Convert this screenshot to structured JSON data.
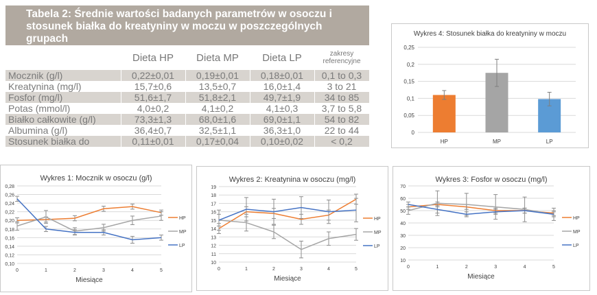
{
  "table": {
    "title": "Tabela 2: Średnie wartości badanych parametrów w osoczu i stosunek białka do kreatyniny w moczu w poszczególnych grupach",
    "headers": [
      "",
      "Dieta HP",
      "Dieta MP",
      "Dieta LP",
      "zakresy referencyjne"
    ],
    "rows": [
      [
        "Mocznik (g/l)",
        "0,22±0,01",
        "0,19±0,01",
        "0,18±0,01",
        "0,1 to 0,3"
      ],
      [
        "Kreatynina (mg/l)",
        "15,7±0,6",
        "13,5±0,7",
        "16,0±1,4",
        "3 to 21"
      ],
      [
        "Fosfor (mg/l)",
        "51,6±1,7",
        "51,8±2,1",
        "49,7±1,9",
        "34 to 85"
      ],
      [
        "Potas (mmol/l)",
        "4,0±0,2",
        "4,1±0,2",
        "4,1±0,3",
        "3,7 to 5,8"
      ],
      [
        "Białko całkowite (g/l)",
        "73,3±1,3",
        "68,0±1,6",
        "69,0±1,1",
        "54 to 82"
      ],
      [
        "Albumina (g/l)",
        "36,4±0,7",
        "32,5±1,1",
        "36,3±1,0",
        "22 to 44"
      ],
      [
        "Stosunek białka do",
        "0,11±0,01",
        "0,17±0,04",
        "0,10±0,02",
        "< 0,2"
      ]
    ]
  },
  "chart_data": [
    {
      "id": "wykres4",
      "type": "bar",
      "title": "Wykres 4: Stosunek białka do kreatyniny w moczu",
      "categories": [
        "HP",
        "MP",
        "LP"
      ],
      "values": [
        0.11,
        0.175,
        0.098
      ],
      "errors": [
        0.013,
        0.04,
        0.02
      ],
      "colors": [
        "#ed7d31",
        "#a5a5a5",
        "#5b9bd5"
      ],
      "ylim": [
        0,
        0.25
      ],
      "yticks": [
        0,
        0.05,
        0.1,
        0.15,
        0.2,
        0.25
      ],
      "ytick_labels": [
        "0",
        "0,05",
        "0,1",
        "0,15",
        "0,2",
        "0,25"
      ],
      "xlabel": "",
      "ylabel": ""
    },
    {
      "id": "wykres1",
      "type": "line",
      "title": "Wykres 1: Mocznik w osoczu (g/l)",
      "x": [
        0,
        1,
        2,
        3,
        4,
        5
      ],
      "xlabel": "Miesiące",
      "ylim": [
        0.1,
        0.28
      ],
      "yticks": [
        0.1,
        0.12,
        0.14,
        0.16,
        0.18,
        0.2,
        0.22,
        0.24,
        0.26,
        0.28
      ],
      "ytick_labels": [
        "0,10",
        "0,12",
        "0,14",
        "0,16",
        "0,18",
        "0,20",
        "0,22",
        "0,24",
        "0,26",
        "0,28"
      ],
      "series": [
        {
          "name": "HP",
          "color": "#ed7d31",
          "values": [
            0.2,
            0.202,
            0.205,
            0.227,
            0.232,
            0.218
          ],
          "errors": [
            0.006,
            0.006,
            0.006,
            0.006,
            0.006,
            0.006
          ]
        },
        {
          "name": "MP",
          "color": "#a5a5a5",
          "values": [
            0.187,
            0.208,
            0.175,
            0.183,
            0.2,
            0.21
          ],
          "errors": [
            0.01,
            0.015,
            0.008,
            0.008,
            0.01,
            0.01
          ]
        },
        {
          "name": "LP",
          "color": "#4472c4",
          "values": [
            0.25,
            0.18,
            0.172,
            0.172,
            0.155,
            0.16
          ],
          "errors": [
            0.006,
            0.006,
            0.006,
            0.006,
            0.008,
            0.006
          ]
        }
      ]
    },
    {
      "id": "wykres2",
      "type": "line",
      "title": "Wykres 2: Kreatynina w osoczu (mg/l)",
      "x": [
        0,
        1,
        2,
        3,
        4,
        5
      ],
      "xlabel": "Miesiące",
      "ylim": [
        10,
        19
      ],
      "yticks": [
        10,
        11,
        12,
        13,
        14,
        15,
        16,
        17,
        18,
        19
      ],
      "ytick_labels": [
        "10",
        "11",
        "12",
        "13",
        "14",
        "15",
        "16",
        "17",
        "18",
        "19"
      ],
      "series": [
        {
          "name": "HP",
          "color": "#ed7d31",
          "values": [
            14.0,
            16.0,
            15.8,
            15.1,
            15.6,
            17.5
          ],
          "errors": [
            0.6,
            0.6,
            0.6,
            0.6,
            0.6,
            0.6
          ]
        },
        {
          "name": "MP",
          "color": "#a5a5a5",
          "values": [
            15.0,
            14.7,
            13.6,
            11.5,
            12.8,
            13.3
          ],
          "errors": [
            0.7,
            1.0,
            0.8,
            1.0,
            0.8,
            0.7
          ]
        },
        {
          "name": "LP",
          "color": "#4472c4",
          "values": [
            15.0,
            16.3,
            16.0,
            16.5,
            16.0,
            16.2
          ],
          "errors": [
            1.2,
            1.4,
            1.5,
            1.3,
            1.4,
            1.4
          ]
        }
      ]
    },
    {
      "id": "wykres3",
      "type": "line",
      "title": "Wykres 3: Fosfor w osoczu (mg/l)",
      "x": [
        0,
        1,
        2,
        3,
        4,
        5
      ],
      "xlabel": "Miesiące",
      "ylim": [
        10,
        70
      ],
      "yticks": [
        10,
        20,
        30,
        40,
        50,
        60,
        70
      ],
      "ytick_labels": [
        "10",
        "20",
        "30",
        "40",
        "50",
        "60",
        "70"
      ],
      "series": [
        {
          "name": "HP",
          "color": "#ed7d31",
          "values": [
            53,
            55,
            53,
            50,
            50,
            48
          ],
          "errors": [
            2,
            2,
            2,
            2,
            2,
            2
          ]
        },
        {
          "name": "MP",
          "color": "#a5a5a5",
          "values": [
            50,
            56,
            55,
            53,
            51,
            47
          ],
          "errors": [
            3,
            10,
            9,
            10,
            10,
            5
          ]
        },
        {
          "name": "LP",
          "color": "#4472c4",
          "values": [
            55,
            51,
            47,
            49,
            50,
            47
          ],
          "errors": [
            2,
            3,
            2,
            2,
            2,
            2
          ]
        }
      ]
    }
  ]
}
